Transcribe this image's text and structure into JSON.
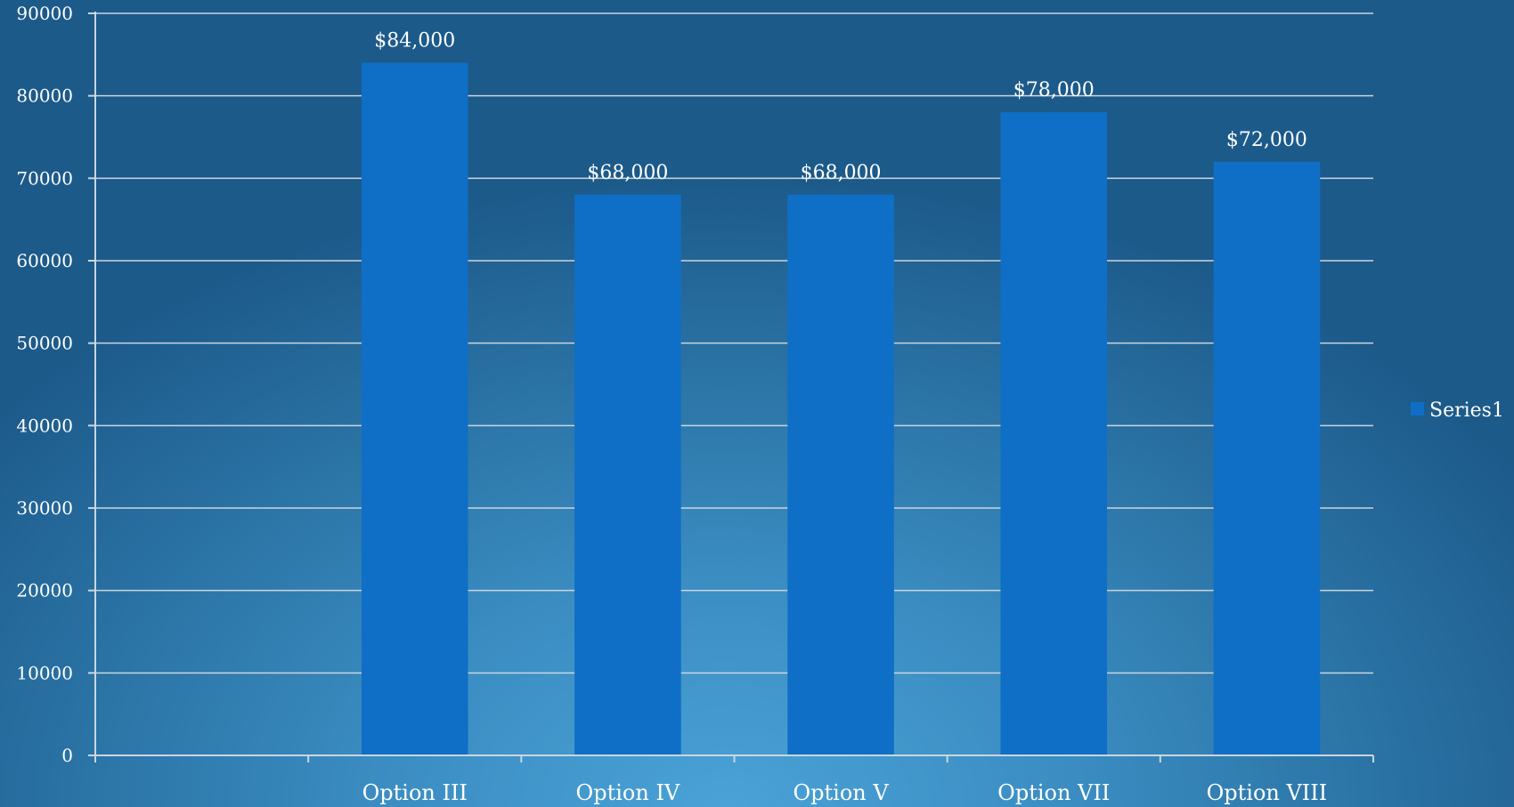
{
  "chart_data": {
    "type": "bar",
    "title": "",
    "xlabel": "",
    "ylabel": "",
    "categories": [
      "",
      "Option III",
      "Option IV",
      "Option V",
      "Option VII",
      "Option VIII"
    ],
    "series": [
      {
        "name": "Series1",
        "values": [
          null,
          84000,
          68000,
          68000,
          78000,
          72000
        ],
        "data_labels": [
          "",
          "$84,000",
          "$68,000",
          "$68,000",
          "$78,000",
          "$72,000"
        ],
        "color": "#0f6fc6"
      }
    ],
    "ylim": [
      0,
      90000
    ],
    "yticks": [
      0,
      10000,
      20000,
      30000,
      40000,
      50000,
      60000,
      70000,
      80000,
      90000
    ],
    "ytick_labels": [
      "0",
      "10000",
      "20000",
      "30000",
      "40000",
      "50000",
      "60000",
      "70000",
      "80000",
      "90000"
    ],
    "grid": true,
    "legend": {
      "position": "right",
      "entries": [
        "Series1"
      ]
    },
    "colors": {
      "bar": "#0f6fc6",
      "gridline": "#c9d6e0",
      "text": "#ffffff"
    }
  }
}
